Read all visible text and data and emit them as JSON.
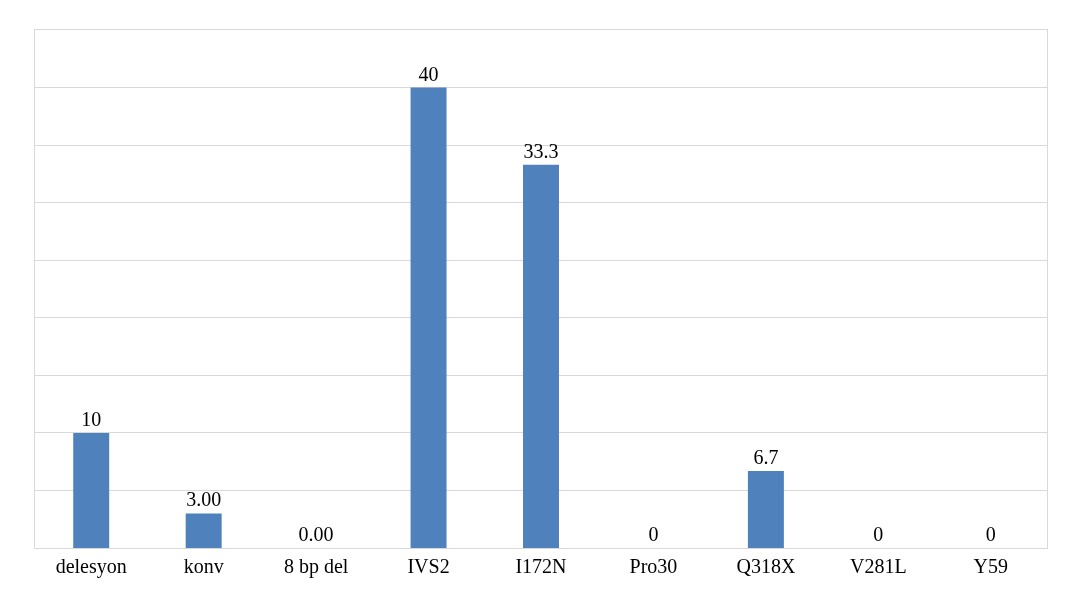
{
  "chart_data": {
    "type": "bar",
    "categories": [
      "delesyon",
      "konv",
      "8 bp del",
      "IVS2",
      "I172N",
      "Pro30",
      "Q318X",
      "V281L",
      "Y59"
    ],
    "values": [
      10,
      3,
      0,
      40,
      33.3,
      0,
      6.7,
      0,
      0
    ],
    "value_labels": [
      "10",
      "3.00",
      "0.00",
      "40",
      "33.3",
      "0",
      "6.7",
      "0",
      "0"
    ],
    "color": "#4f81bd",
    "ylim": [
      0,
      45
    ],
    "yticks": [
      {
        "value": 0,
        "label": null
      },
      {
        "value": 5,
        "label": null
      },
      {
        "value": 10,
        "label": null
      },
      {
        "value": 15,
        "label": null
      },
      {
        "value": 20,
        "label": null
      },
      {
        "value": 25,
        "label": null
      },
      {
        "value": 30,
        "label": null
      },
      {
        "value": 35,
        "label": null
      },
      {
        "value": 40,
        "label": null
      }
    ],
    "tick_labels": "x",
    "grid": "y",
    "legend": false
  }
}
